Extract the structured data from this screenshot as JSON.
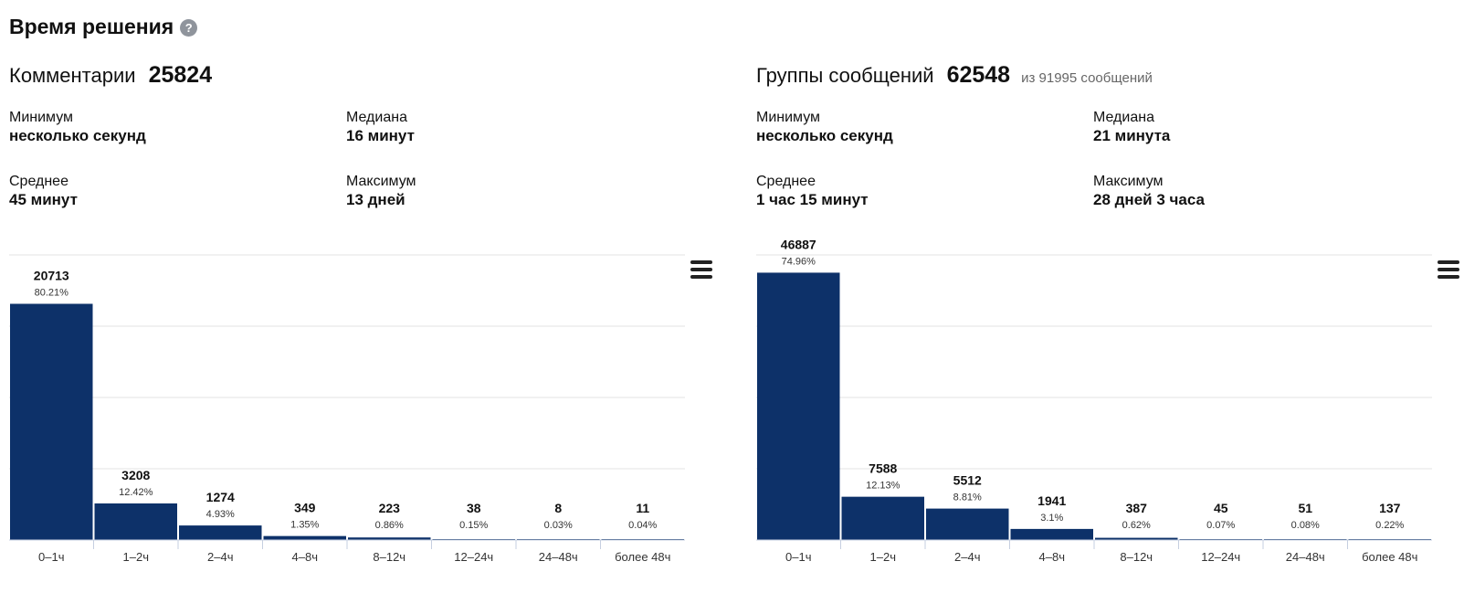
{
  "page": {
    "title": "Время решения",
    "help_icon": "?"
  },
  "panels": [
    {
      "label": "Комментарии",
      "count": "25824",
      "sub": "",
      "stats": {
        "min_label": "Минимум",
        "min_value": "несколько секунд",
        "median_label": "Медиана",
        "median_value": "16 минут",
        "avg_label": "Среднее",
        "avg_value": "45 минут",
        "max_label": "Максимум",
        "max_value": "13 дней"
      }
    },
    {
      "label": "Группы сообщений",
      "count": "62548",
      "sub": "из 91995 сообщений",
      "stats": {
        "min_label": "Минимум",
        "min_value": "несколько секунд",
        "median_label": "Медиана",
        "median_value": "21 минута",
        "avg_label": "Среднее",
        "avg_value": "1 час 15 минут",
        "max_label": "Максимум",
        "max_value": "28 дней 3 часа"
      }
    }
  ],
  "colors": {
    "bar": "#0d3169",
    "grid": "#e3e3e3",
    "axis": "#c6cfe0"
  },
  "icons": {
    "menu": "hamburger-menu-icon",
    "help": "question-circle-icon"
  },
  "chart_data": [
    {
      "type": "bar",
      "categories": [
        "0–1ч",
        "1–2ч",
        "2–4ч",
        "4–8ч",
        "8–12ч",
        "12–24ч",
        "24–48ч",
        "более 48ч"
      ],
      "values": [
        20713,
        3208,
        1274,
        349,
        223,
        38,
        8,
        11
      ],
      "labels": [
        "20713",
        "3208",
        "1274",
        "349",
        "223",
        "38",
        "8",
        "11"
      ],
      "percents": [
        "80.21%",
        "12.42%",
        "4.93%",
        "1.35%",
        "0.86%",
        "0.15%",
        "0.03%",
        "0.04%"
      ],
      "ylim": [
        0,
        25000
      ],
      "grid": true
    },
    {
      "type": "bar",
      "categories": [
        "0–1ч",
        "1–2ч",
        "2–4ч",
        "4–8ч",
        "8–12ч",
        "12–24ч",
        "24–48ч",
        "более 48ч"
      ],
      "values": [
        46887,
        7588,
        5512,
        1941,
        387,
        45,
        51,
        137
      ],
      "labels": [
        "46887",
        "7588",
        "5512",
        "1941",
        "387",
        "45",
        "51",
        "137"
      ],
      "percents": [
        "74.96%",
        "12.13%",
        "8.81%",
        "3.1%",
        "0.62%",
        "0.07%",
        "0.08%",
        "0.22%"
      ],
      "ylim": [
        0,
        50000
      ],
      "grid": true
    }
  ]
}
